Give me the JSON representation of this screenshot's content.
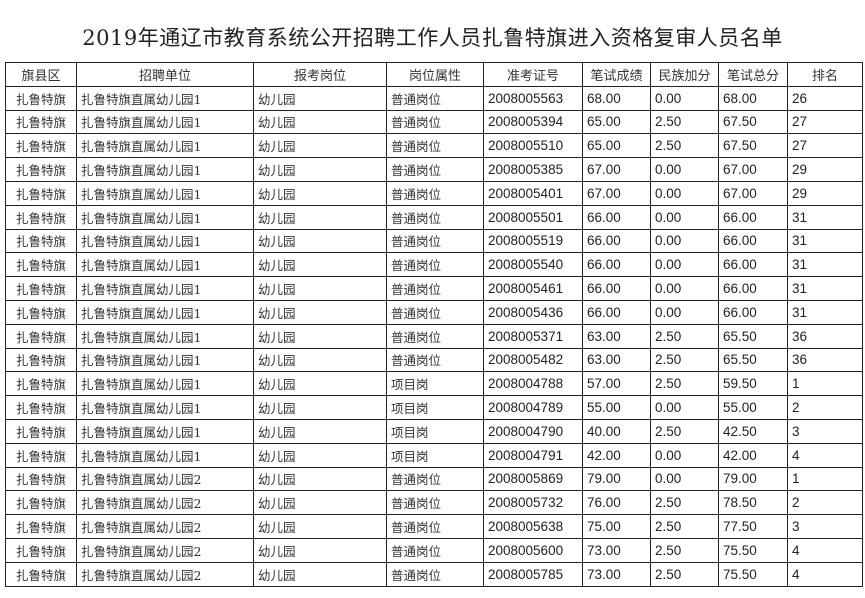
{
  "title": "2019年通辽市教育系统公开招聘工作人员扎鲁特旗进入资格复审人员名单",
  "table": {
    "headers": [
      "旗县区",
      "招聘单位",
      "报考岗位",
      "岗位属性",
      "准考证号",
      "笔试成绩",
      "民族加分",
      "笔试总分",
      "排名"
    ],
    "rows": [
      [
        "扎鲁特旗",
        "扎鲁特旗直属幼儿园1",
        "幼儿园",
        "普通岗位",
        "2008005563",
        "68.00",
        "0.00",
        "68.00",
        "26"
      ],
      [
        "扎鲁特旗",
        "扎鲁特旗直属幼儿园1",
        "幼儿园",
        "普通岗位",
        "2008005394",
        "65.00",
        "2.50",
        "67.50",
        "27"
      ],
      [
        "扎鲁特旗",
        "扎鲁特旗直属幼儿园1",
        "幼儿园",
        "普通岗位",
        "2008005510",
        "65.00",
        "2.50",
        "67.50",
        "27"
      ],
      [
        "扎鲁特旗",
        "扎鲁特旗直属幼儿园1",
        "幼儿园",
        "普通岗位",
        "2008005385",
        "67.00",
        "0.00",
        "67.00",
        "29"
      ],
      [
        "扎鲁特旗",
        "扎鲁特旗直属幼儿园1",
        "幼儿园",
        "普通岗位",
        "2008005401",
        "67.00",
        "0.00",
        "67.00",
        "29"
      ],
      [
        "扎鲁特旗",
        "扎鲁特旗直属幼儿园1",
        "幼儿园",
        "普通岗位",
        "2008005501",
        "66.00",
        "0.00",
        "66.00",
        "31"
      ],
      [
        "扎鲁特旗",
        "扎鲁特旗直属幼儿园1",
        "幼儿园",
        "普通岗位",
        "2008005519",
        "66.00",
        "0.00",
        "66.00",
        "31"
      ],
      [
        "扎鲁特旗",
        "扎鲁特旗直属幼儿园1",
        "幼儿园",
        "普通岗位",
        "2008005540",
        "66.00",
        "0.00",
        "66.00",
        "31"
      ],
      [
        "扎鲁特旗",
        "扎鲁特旗直属幼儿园1",
        "幼儿园",
        "普通岗位",
        "2008005461",
        "66.00",
        "0.00",
        "66.00",
        "31"
      ],
      [
        "扎鲁特旗",
        "扎鲁特旗直属幼儿园1",
        "幼儿园",
        "普通岗位",
        "2008005436",
        "66.00",
        "0.00",
        "66.00",
        "31"
      ],
      [
        "扎鲁特旗",
        "扎鲁特旗直属幼儿园1",
        "幼儿园",
        "普通岗位",
        "2008005371",
        "63.00",
        "2.50",
        "65.50",
        "36"
      ],
      [
        "扎鲁特旗",
        "扎鲁特旗直属幼儿园1",
        "幼儿园",
        "普通岗位",
        "2008005482",
        "63.00",
        "2.50",
        "65.50",
        "36"
      ],
      [
        "扎鲁特旗",
        "扎鲁特旗直属幼儿园1",
        "幼儿园",
        "项目岗",
        "2008004788",
        "57.00",
        "2.50",
        "59.50",
        "1"
      ],
      [
        "扎鲁特旗",
        "扎鲁特旗直属幼儿园1",
        "幼儿园",
        "项目岗",
        "2008004789",
        "55.00",
        "0.00",
        "55.00",
        "2"
      ],
      [
        "扎鲁特旗",
        "扎鲁特旗直属幼儿园1",
        "幼儿园",
        "项目岗",
        "2008004790",
        "40.00",
        "2.50",
        "42.50",
        "3"
      ],
      [
        "扎鲁特旗",
        "扎鲁特旗直属幼儿园1",
        "幼儿园",
        "项目岗",
        "2008004791",
        "42.00",
        "0.00",
        "42.00",
        "4"
      ],
      [
        "扎鲁特旗",
        "扎鲁特旗直属幼儿园2",
        "幼儿园",
        "普通岗位",
        "2008005869",
        "79.00",
        "0.00",
        "79.00",
        "1"
      ],
      [
        "扎鲁特旗",
        "扎鲁特旗直属幼儿园2",
        "幼儿园",
        "普通岗位",
        "2008005732",
        "76.00",
        "2.50",
        "78.50",
        "2"
      ],
      [
        "扎鲁特旗",
        "扎鲁特旗直属幼儿园2",
        "幼儿园",
        "普通岗位",
        "2008005638",
        "75.00",
        "2.50",
        "77.50",
        "3"
      ],
      [
        "扎鲁特旗",
        "扎鲁特旗直属幼儿园2",
        "幼儿园",
        "普通岗位",
        "2008005600",
        "73.00",
        "2.50",
        "75.50",
        "4"
      ],
      [
        "扎鲁特旗",
        "扎鲁特旗直属幼儿园2",
        "幼儿园",
        "普通岗位",
        "2008005785",
        "73.00",
        "2.50",
        "75.50",
        "4"
      ]
    ]
  }
}
